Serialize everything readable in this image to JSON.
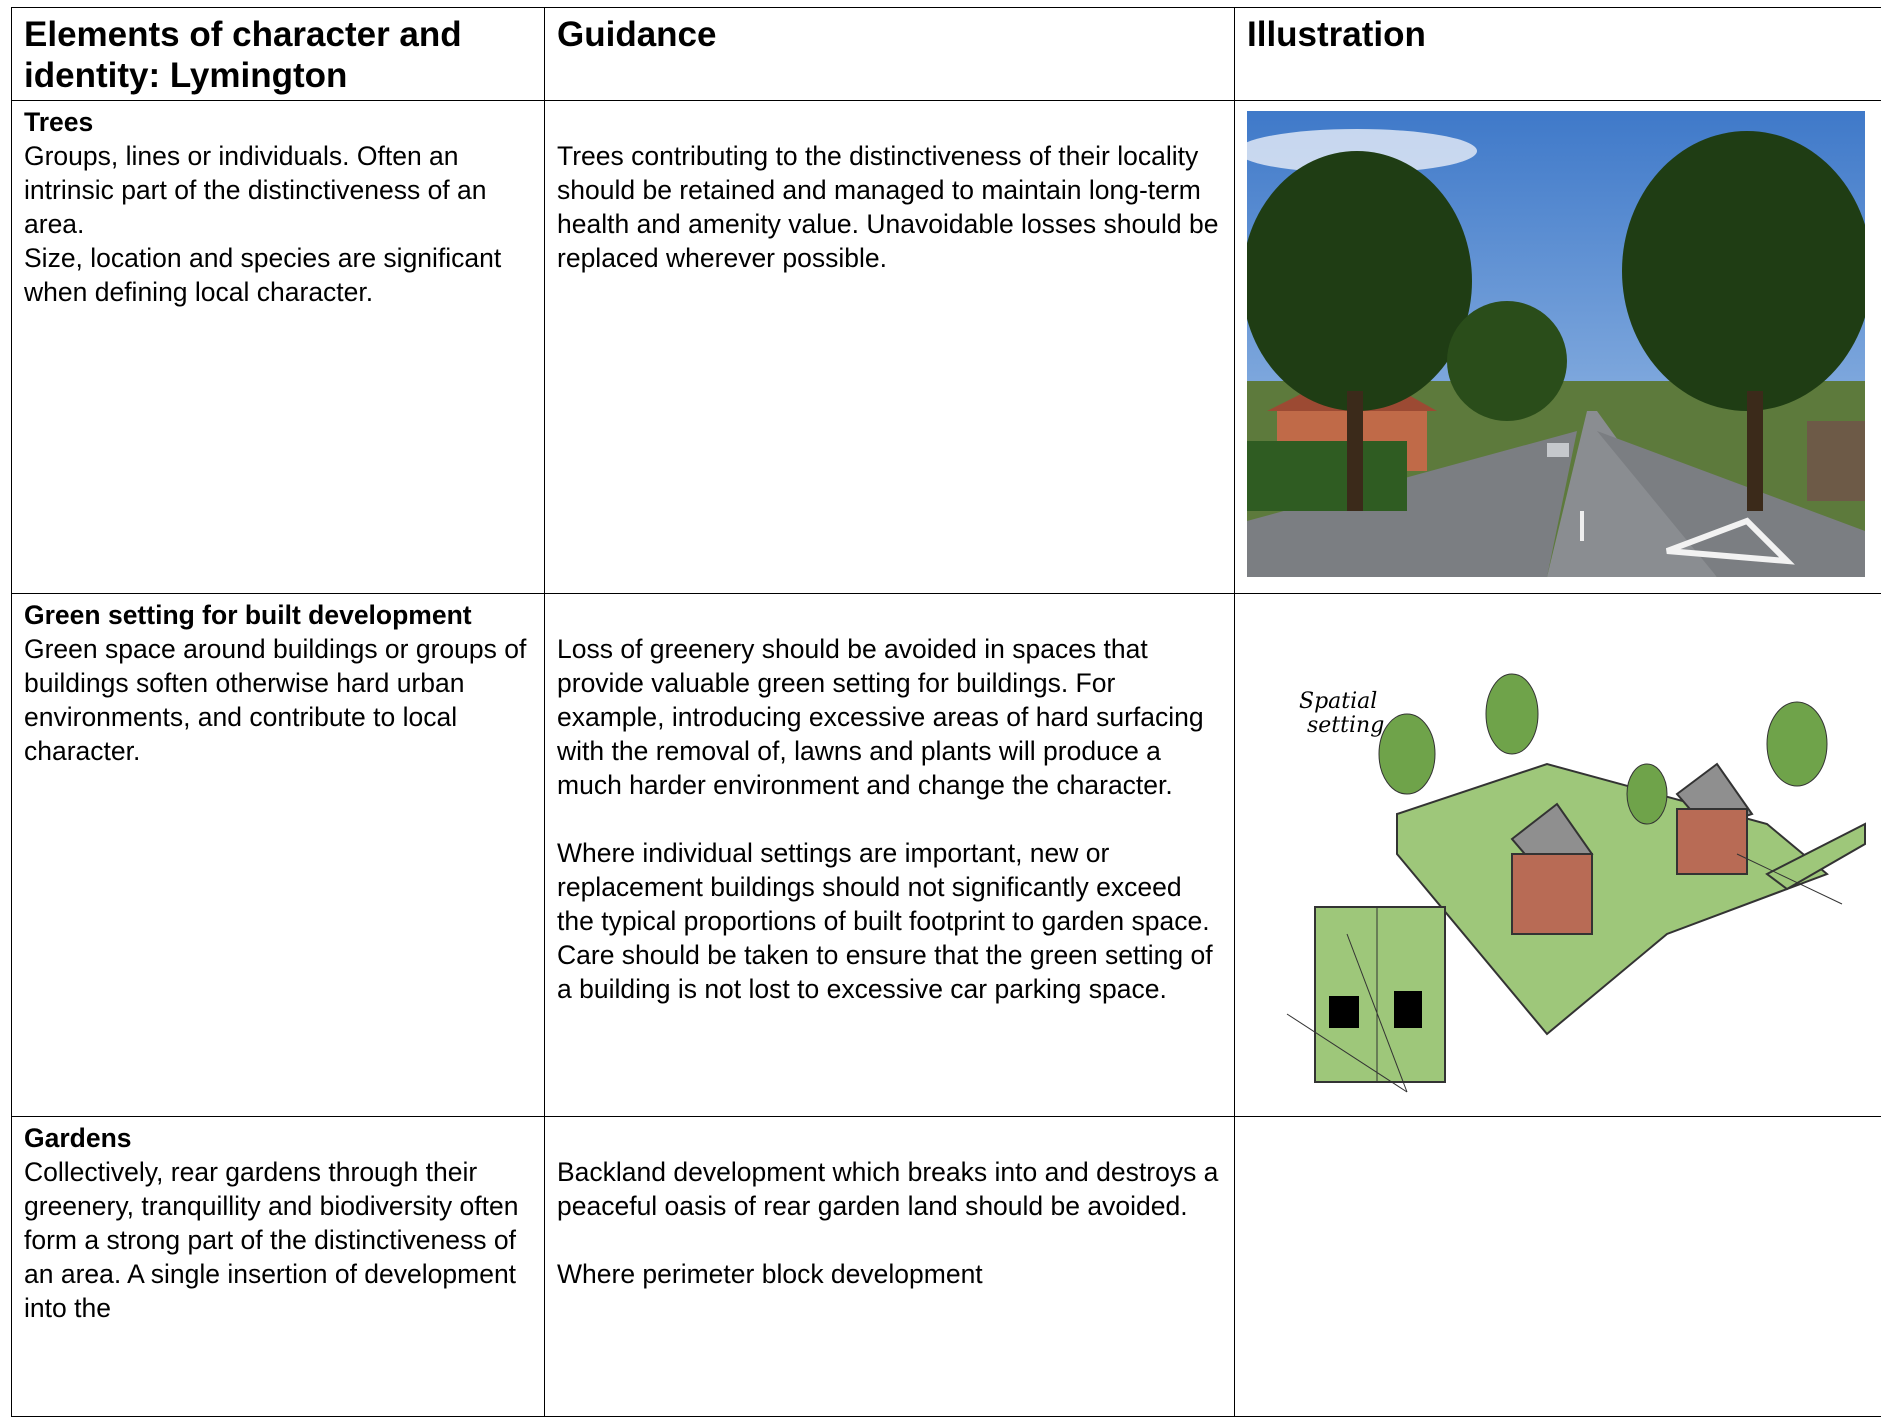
{
  "table": {
    "headers": [
      "Elements of character and identity:  Lymington",
      "Guidance",
      "Illustration"
    ],
    "rows": [
      {
        "title": "Trees",
        "description": [
          "Groups, lines or individuals.  Often an intrinsic part of the distinctiveness of an area.",
          "Size, location and species are significant when defining local character."
        ],
        "guidance": [
          "Trees contributing to the distinctiveness of their locality should be retained and managed to maintain long-term health and amenity value. Unavoidable losses should be replaced wherever possible."
        ]
      },
      {
        "title": "Green setting for built development",
        "description": [
          "Green space around buildings or groups of buildings soften otherwise hard urban environments, and contribute to local character."
        ],
        "guidance": [
          "Loss of greenery should be avoided in spaces that provide valuable green setting for buildings. For example, introducing excessive areas of hard surfacing with the removal of, lawns and plants will produce a much harder environment and change the character.",
          "Where individual settings are important, new or replacement buildings should not significantly exceed the typical proportions of built footprint to garden space. Care should be taken to ensure that the green setting of a building is not lost to excessive car parking space."
        ],
        "illustration_label": [
          "Spatial",
          "setting"
        ]
      },
      {
        "title": "Gardens",
        "description": [
          "Collectively, rear gardens through their greenery, tranquillity and biodiversity often form a strong part of the distinctiveness of an area.  A single insertion of development into the"
        ],
        "guidance": [
          "Backland development which breaks into and destroys a peaceful oasis of rear garden land should be avoided.",
          "Where perimeter block development"
        ]
      }
    ]
  }
}
